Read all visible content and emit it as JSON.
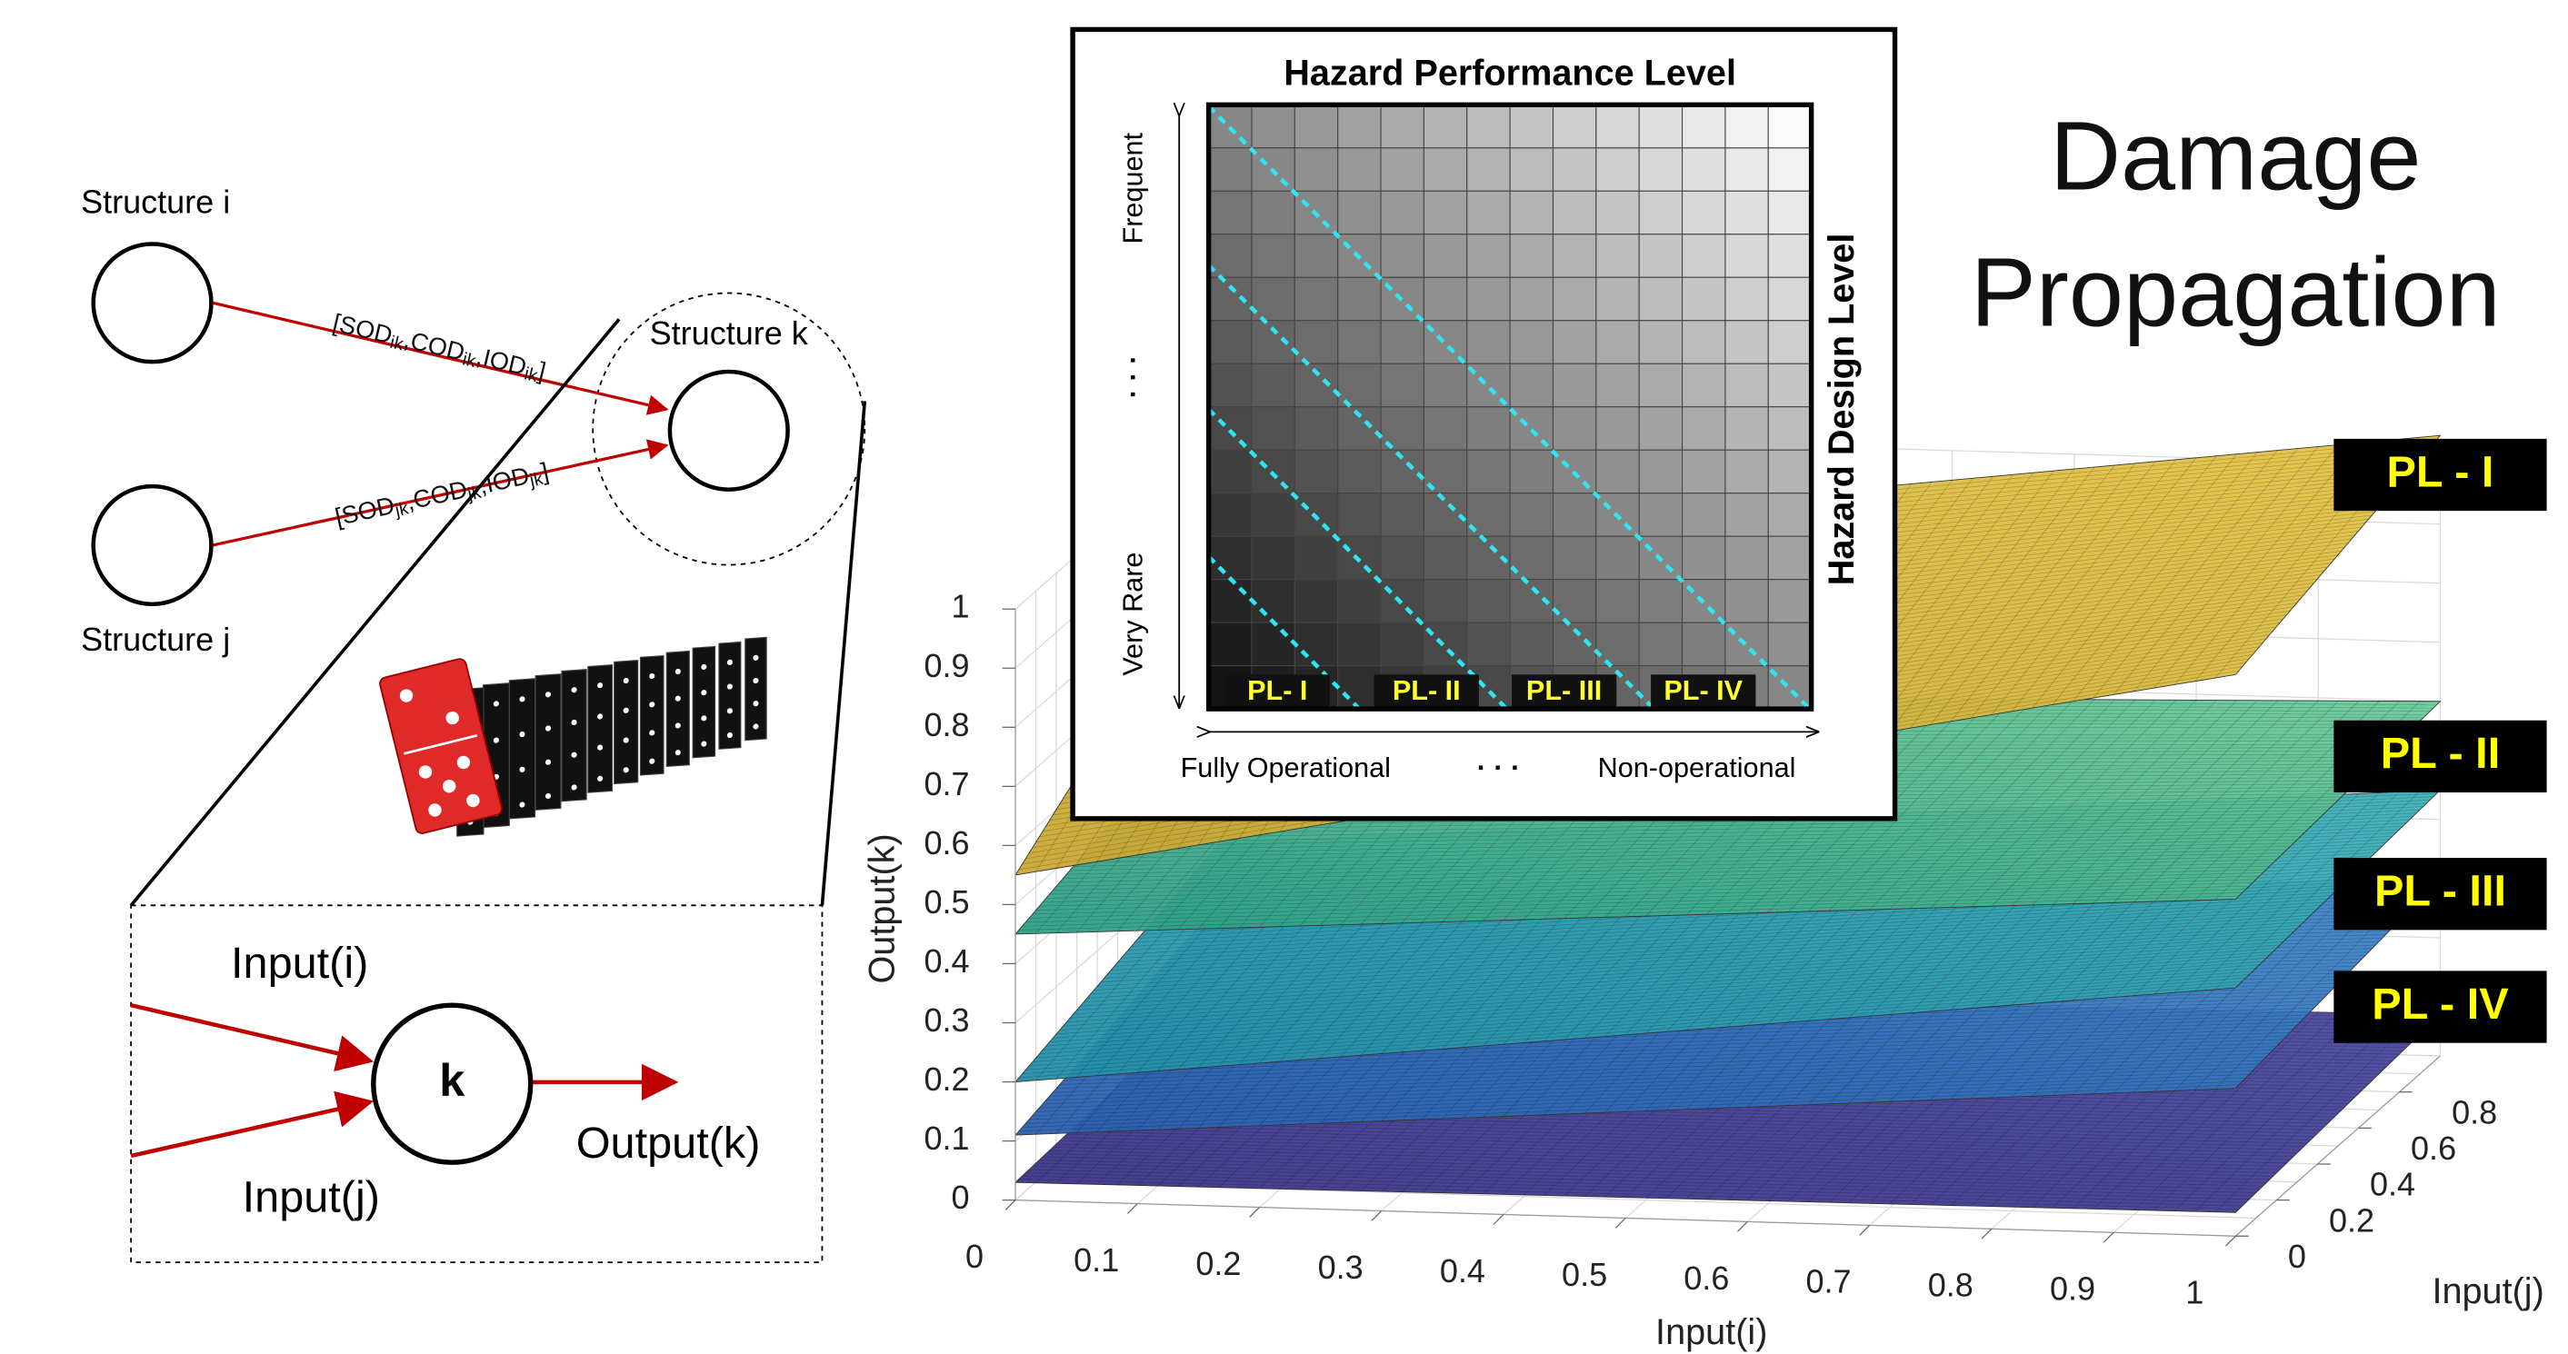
{
  "header": {
    "title_lines": [
      "Damage",
      "Propagation"
    ]
  },
  "network": {
    "structures": [
      "Structure i",
      "Structure j",
      "Structure k"
    ],
    "edges": [
      {
        "parts": [
          "[SOD",
          "ik",
          ",COD",
          "ik",
          ",IOD",
          "ik",
          "]"
        ]
      },
      {
        "parts": [
          "[SOD",
          "jk",
          ",COD",
          "jk",
          ",IOD",
          "jk",
          "]"
        ]
      }
    ]
  },
  "node_detail": {
    "node": "k",
    "inputs": [
      "Input(i)",
      "Input(j)"
    ],
    "output": "Output(k)"
  },
  "matrix": {
    "title": "Hazard Performance Level",
    "y_title": "Hazard Design Level",
    "y_labels": [
      "Frequent",
      "· · ·",
      "Very Rare"
    ],
    "x_labels": [
      "Fully Operational",
      "· · ·",
      "Non-operational"
    ],
    "levels": [
      "PL- I",
      "PL- II",
      "PL- III",
      "PL- IV"
    ]
  },
  "plot": {
    "xlabel": "Input(i)",
    "ylabel": "Input(j)",
    "zlabel": "Output(k)",
    "xticks": [
      0,
      0.1,
      0.2,
      0.3,
      0.4,
      0.5,
      0.6,
      0.7,
      0.8,
      0.9,
      1
    ],
    "yticks": [
      0,
      0.2,
      0.4,
      0.6,
      0.8
    ],
    "zticks": [
      0,
      0.1,
      0.2,
      0.3,
      0.4,
      0.5,
      0.6,
      0.7,
      0.8,
      0.9,
      1
    ]
  },
  "levels": [
    "PL - I",
    "PL - II",
    "PL - III",
    "PL - IV"
  ]
}
